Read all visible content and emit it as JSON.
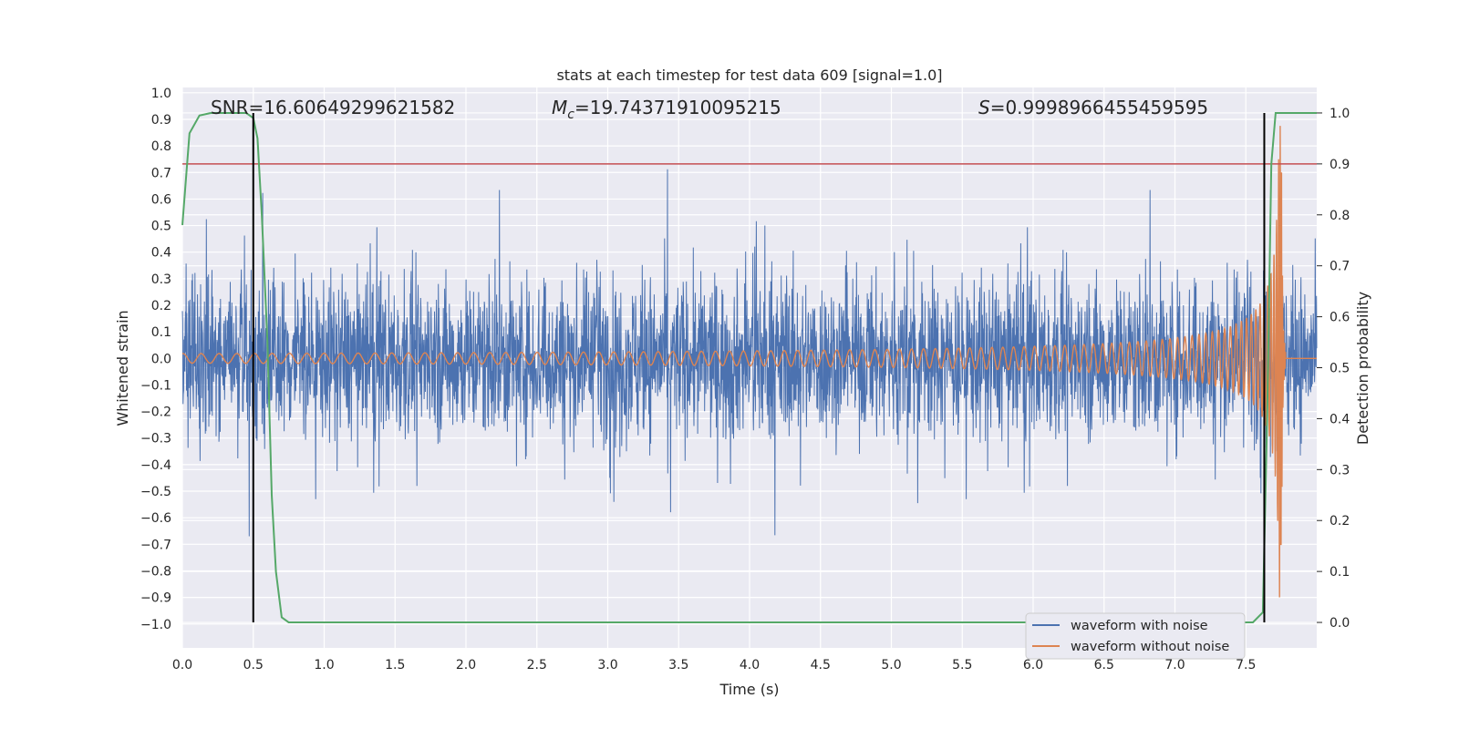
{
  "chart_data": {
    "type": "line",
    "title": "stats at each timestep for test data 609 [signal=1.0]",
    "xlabel": "Time (s)",
    "ylabel_left": "Whitened strain",
    "ylabel_right": "Detection probability",
    "xlim": [
      0.0,
      8.0
    ],
    "ylim_left": [
      -1.09,
      1.02
    ],
    "ylim_right": [
      -0.05,
      1.05
    ],
    "x_ticks": [
      "0.0",
      "0.5",
      "1.0",
      "1.5",
      "2.0",
      "2.5",
      "3.0",
      "3.5",
      "4.0",
      "4.5",
      "5.0",
      "5.5",
      "6.0",
      "6.5",
      "7.0",
      "7.5"
    ],
    "x_tick_values": [
      0.0,
      0.5,
      1.0,
      1.5,
      2.0,
      2.5,
      3.0,
      3.5,
      4.0,
      4.5,
      5.0,
      5.5,
      6.0,
      6.5,
      7.0,
      7.5
    ],
    "left_ticks": [
      "1.0",
      "0.9",
      "0.8",
      "0.7",
      "0.6",
      "0.5",
      "0.4",
      "0.3",
      "0.2",
      "0.1",
      "0.0",
      "−0.1",
      "−0.2",
      "−0.3",
      "−0.4",
      "−0.5",
      "−0.6",
      "−0.7",
      "−0.8",
      "−0.9",
      "−1.0"
    ],
    "left_tick_values": [
      1.0,
      0.9,
      0.8,
      0.7,
      0.6,
      0.5,
      0.4,
      0.3,
      0.2,
      0.1,
      0.0,
      -0.1,
      -0.2,
      -0.3,
      -0.4,
      -0.5,
      -0.6,
      -0.7,
      -0.8,
      -0.9,
      -1.0
    ],
    "right_ticks": [
      "1.0",
      "0.9",
      "0.8",
      "0.7",
      "0.6",
      "0.5",
      "0.4",
      "0.3",
      "0.2",
      "0.1",
      "0.0"
    ],
    "right_tick_values": [
      1.0,
      0.9,
      0.8,
      0.7,
      0.6,
      0.5,
      0.4,
      0.3,
      0.2,
      0.1,
      0.0
    ],
    "annotations": {
      "snr": "SNR=16.60649299621582",
      "mc_symbol": "M",
      "mc_subscript": "c",
      "mc_value": "=19.74371910095215",
      "s_symbol": "S",
      "s_value": "=0.9998966455459595"
    },
    "threshold_probability": 0.9,
    "vertical_lines_time": [
      0.5,
      7.63
    ],
    "series": [
      {
        "name": "waveform with noise",
        "color": "#4c72b0",
        "axis": "left",
        "envelope": 0.3,
        "peak": 0.75,
        "duration": 8.0
      },
      {
        "name": "waveform without noise",
        "color": "#dd8452",
        "axis": "left",
        "merger_time": 7.75,
        "peak": 0.9
      },
      {
        "name": "detection probability",
        "color": "#55a868",
        "axis": "right",
        "x": [
          0.0,
          0.05,
          0.12,
          0.2,
          0.3,
          0.4,
          0.45,
          0.5,
          0.53,
          0.56,
          0.6,
          0.63,
          0.66,
          0.7,
          0.75,
          0.8,
          1.0,
          2.0,
          4.0,
          6.0,
          7.0,
          7.55,
          7.62,
          7.65,
          7.68,
          7.71,
          7.75,
          7.8,
          8.0
        ],
        "y": [
          0.78,
          0.96,
          0.995,
          1.0,
          1.0,
          1.0,
          1.0,
          0.99,
          0.95,
          0.8,
          0.55,
          0.25,
          0.1,
          0.01,
          0.0,
          0.0,
          0.0,
          0.0,
          0.0,
          0.0,
          0.0,
          0.0,
          0.02,
          0.4,
          0.9,
          1.0,
          1.0,
          1.0,
          1.0
        ]
      }
    ],
    "colors": {
      "background": "#eaeaf2",
      "grid": "#ffffff",
      "threshold": "#c44e52",
      "marker": "#000000"
    },
    "legend_position": "lower-right"
  }
}
